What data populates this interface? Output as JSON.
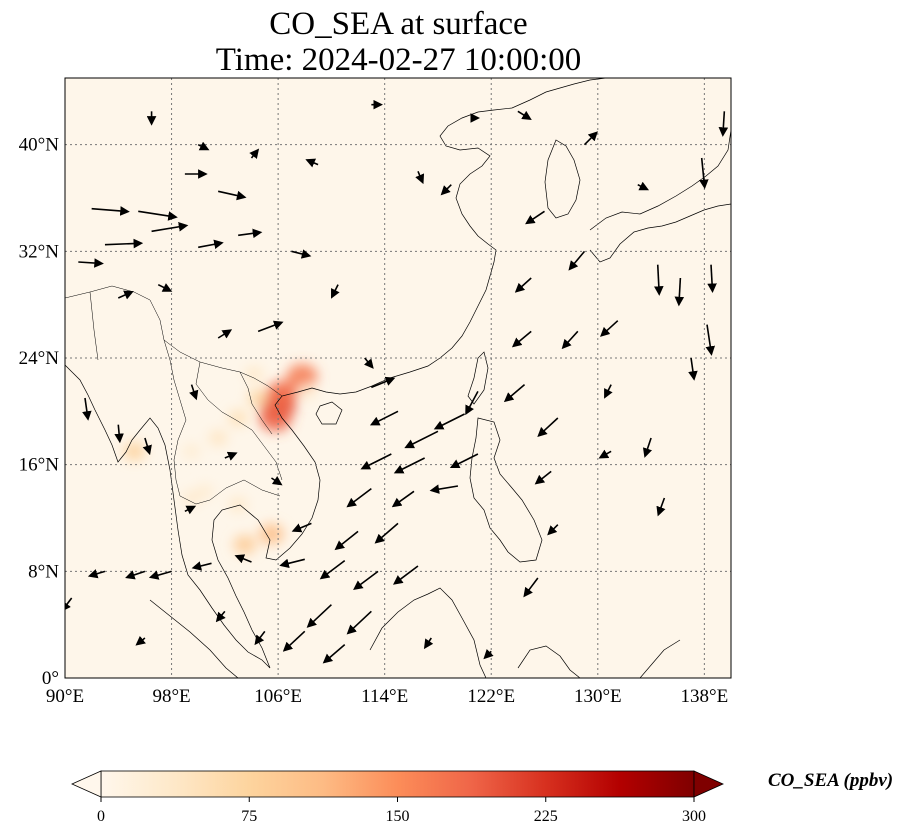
{
  "title": {
    "line1": "CO_SEA at surface",
    "line2": "Time: 2024-02-27 10:00:00"
  },
  "map": {
    "type": "map",
    "lon_range": [
      90,
      140
    ],
    "lat_range": [
      0,
      45
    ],
    "lat_ticks": [
      {
        "value": 40,
        "label": "40°N"
      },
      {
        "value": 32,
        "label": "32°N"
      },
      {
        "value": 24,
        "label": "24°N"
      },
      {
        "value": 16,
        "label": "16°N"
      },
      {
        "value": 8,
        "label": "8°N"
      },
      {
        "value": 0,
        "label": "0°"
      }
    ],
    "lon_ticks": [
      {
        "value": 90,
        "label": "90°E"
      },
      {
        "value": 98,
        "label": "98°E"
      },
      {
        "value": 106,
        "label": "106°E"
      },
      {
        "value": 114,
        "label": "114°E"
      },
      {
        "value": 122,
        "label": "122°E"
      },
      {
        "value": 130,
        "label": "130°E"
      },
      {
        "value": 138,
        "label": "138°E"
      }
    ],
    "gridlines": true,
    "colormap": "OrRd",
    "background_color": "#fef6ea",
    "line_color": "#000000",
    "plumes": [
      {
        "lon": 106.0,
        "lat": 20.5,
        "value": 220
      },
      {
        "lon": 105.8,
        "lat": 19.5,
        "value": 190
      },
      {
        "lon": 106.3,
        "lat": 21.3,
        "value": 180
      },
      {
        "lon": 107.8,
        "lat": 22.6,
        "value": 170
      },
      {
        "lon": 104.5,
        "lat": 21.0,
        "value": 70
      },
      {
        "lon": 103.0,
        "lat": 19.5,
        "value": 55
      },
      {
        "lon": 101.5,
        "lat": 18.0,
        "value": 45
      },
      {
        "lon": 99.5,
        "lat": 17.0,
        "value": 30
      },
      {
        "lon": 95.2,
        "lat": 17.0,
        "value": 80
      },
      {
        "lon": 104.2,
        "lat": 22.8,
        "value": 40
      },
      {
        "lon": 108.2,
        "lat": 21.5,
        "value": 35
      },
      {
        "lon": 103.0,
        "lat": 13.0,
        "value": 40
      },
      {
        "lon": 103.5,
        "lat": 10.0,
        "value": 90
      },
      {
        "lon": 105.5,
        "lat": 10.8,
        "value": 110
      },
      {
        "lon": 100.5,
        "lat": 14.0,
        "value": 30
      },
      {
        "lon": 99.5,
        "lat": 13.5,
        "value": 35
      }
    ],
    "wind_vectors": [
      {
        "lon": 92,
        "lat": 35.2,
        "u": 2.5,
        "v": -0.2
      },
      {
        "lon": 95.5,
        "lat": 35,
        "u": 2.6,
        "v": -0.4
      },
      {
        "lon": 93,
        "lat": 32.5,
        "u": 2.5,
        "v": 0.1
      },
      {
        "lon": 96.5,
        "lat": 33.5,
        "u": 2.4,
        "v": 0.4
      },
      {
        "lon": 91,
        "lat": 31.2,
        "u": 1.6,
        "v": -0.1
      },
      {
        "lon": 99,
        "lat": 37.8,
        "u": 1.4,
        "v": 0
      },
      {
        "lon": 101.5,
        "lat": 36.5,
        "u": 1.8,
        "v": -0.4
      },
      {
        "lon": 100,
        "lat": 32.3,
        "u": 1.6,
        "v": 0.3
      },
      {
        "lon": 103,
        "lat": 33.2,
        "u": 1.5,
        "v": 0.2
      },
      {
        "lon": 104.5,
        "lat": 26,
        "u": 1.6,
        "v": 0.6
      },
      {
        "lon": 107,
        "lat": 32,
        "u": 1.2,
        "v": -0.3
      },
      {
        "lon": 113,
        "lat": 21.8,
        "u": 1.5,
        "v": 0.6
      },
      {
        "lon": 115,
        "lat": 20,
        "u": -1.8,
        "v": -0.9
      },
      {
        "lon": 118,
        "lat": 18.5,
        "u": -2.2,
        "v": -1.1
      },
      {
        "lon": 120,
        "lat": 19.8,
        "u": -2.0,
        "v": -1.0
      },
      {
        "lon": 114.5,
        "lat": 16.8,
        "u": -2.0,
        "v": -1.0
      },
      {
        "lon": 117,
        "lat": 16.5,
        "u": -2.0,
        "v": -1.0
      },
      {
        "lon": 121,
        "lat": 16.8,
        "u": -1.8,
        "v": -0.9
      },
      {
        "lon": 113,
        "lat": 14.2,
        "u": -1.6,
        "v": -1.2
      },
      {
        "lon": 116.2,
        "lat": 14,
        "u": -1.4,
        "v": -1.0
      },
      {
        "lon": 119.5,
        "lat": 14.4,
        "u": -1.8,
        "v": -0.3
      },
      {
        "lon": 112,
        "lat": 11,
        "u": -1.5,
        "v": -1.2
      },
      {
        "lon": 115,
        "lat": 11.6,
        "u": -1.5,
        "v": -1.3
      },
      {
        "lon": 111,
        "lat": 8.8,
        "u": -1.6,
        "v": -1.2
      },
      {
        "lon": 113.5,
        "lat": 8,
        "u": -1.6,
        "v": -1.2
      },
      {
        "lon": 116.5,
        "lat": 8.4,
        "u": -1.6,
        "v": -1.2
      },
      {
        "lon": 110,
        "lat": 5.5,
        "u": -1.6,
        "v": -1.5
      },
      {
        "lon": 113,
        "lat": 5,
        "u": -1.6,
        "v": -1.5
      },
      {
        "lon": 108,
        "lat": 3.5,
        "u": -1.4,
        "v": -1.3
      },
      {
        "lon": 111,
        "lat": 2.5,
        "u": -1.4,
        "v": -1.2
      },
      {
        "lon": 108.5,
        "lat": 11.6,
        "u": -1.2,
        "v": -0.5
      },
      {
        "lon": 108,
        "lat": 8.9,
        "u": -1.6,
        "v": -0.4
      },
      {
        "lon": 104,
        "lat": 8.7,
        "u": -1.0,
        "v": 0.4
      },
      {
        "lon": 101,
        "lat": 8.6,
        "u": -1.2,
        "v": -0.3
      },
      {
        "lon": 98,
        "lat": 8,
        "u": -1.4,
        "v": -0.4
      },
      {
        "lon": 96,
        "lat": 8,
        "u": -1.2,
        "v": -0.4
      },
      {
        "lon": 93,
        "lat": 8,
        "u": -1.0,
        "v": -0.3
      },
      {
        "lon": 90.5,
        "lat": 6,
        "u": -0.6,
        "v": -0.8
      },
      {
        "lon": 124.5,
        "lat": 22,
        "u": -1.3,
        "v": -1.1
      },
      {
        "lon": 127,
        "lat": 19.5,
        "u": -1.3,
        "v": -1.2
      },
      {
        "lon": 125,
        "lat": 26,
        "u": -1.2,
        "v": -1.0
      },
      {
        "lon": 128.5,
        "lat": 26,
        "u": -1.0,
        "v": -1.1
      },
      {
        "lon": 131.5,
        "lat": 26.8,
        "u": -1.1,
        "v": -1.0
      },
      {
        "lon": 125,
        "lat": 30,
        "u": -1.0,
        "v": -0.9
      },
      {
        "lon": 129,
        "lat": 32,
        "u": -1.0,
        "v": -1.2
      },
      {
        "lon": 126,
        "lat": 35,
        "u": -1.2,
        "v": -0.8
      },
      {
        "lon": 134.5,
        "lat": 31,
        "u": 0.1,
        "v": -2.0
      },
      {
        "lon": 136.2,
        "lat": 30,
        "u": -0.1,
        "v": -1.8
      },
      {
        "lon": 138.5,
        "lat": 31,
        "u": 0.1,
        "v": -1.8
      },
      {
        "lon": 138.2,
        "lat": 26.5,
        "u": 0.3,
        "v": -2.0
      },
      {
        "lon": 137.8,
        "lat": 39,
        "u": 0.2,
        "v": -2.0
      },
      {
        "lon": 139.5,
        "lat": 42.5,
        "u": -0.1,
        "v": -1.6
      },
      {
        "lon": 137,
        "lat": 24,
        "u": 0.2,
        "v": -1.4
      },
      {
        "lon": 134,
        "lat": 18,
        "u": -0.4,
        "v": -1.2
      },
      {
        "lon": 135,
        "lat": 13.5,
        "u": -0.4,
        "v": -1.1
      },
      {
        "lon": 121,
        "lat": 21.5,
        "u": -0.8,
        "v": -1.5
      },
      {
        "lon": 126.5,
        "lat": 15.5,
        "u": -1.0,
        "v": -0.8
      },
      {
        "lon": 125.5,
        "lat": 7.5,
        "u": -0.9,
        "v": -1.2
      },
      {
        "lon": 96,
        "lat": 18,
        "u": 0.3,
        "v": -1.0
      },
      {
        "lon": 94,
        "lat": 19,
        "u": 0.1,
        "v": -1.1
      },
      {
        "lon": 91.5,
        "lat": 21,
        "u": 0.2,
        "v": -1.4
      },
      {
        "lon": 99.5,
        "lat": 22,
        "u": 0.3,
        "v": -0.9
      },
      {
        "lon": 101.5,
        "lat": 25.5,
        "u": 0.8,
        "v": 0.5
      },
      {
        "lon": 94,
        "lat": 28.5,
        "u": 0.9,
        "v": 0.4
      },
      {
        "lon": 97,
        "lat": 29.5,
        "u": 0.8,
        "v": -0.4
      },
      {
        "lon": 110.5,
        "lat": 29.5,
        "u": -0.4,
        "v": -0.8
      },
      {
        "lon": 112.5,
        "lat": 24,
        "u": 0.5,
        "v": -0.6
      },
      {
        "lon": 116.5,
        "lat": 38,
        "u": 0.3,
        "v": -0.7
      },
      {
        "lon": 119,
        "lat": 37,
        "u": -0.6,
        "v": -0.6
      },
      {
        "lon": 109,
        "lat": 38.5,
        "u": -0.7,
        "v": 0.3
      },
      {
        "lon": 104,
        "lat": 39,
        "u": 0.4,
        "v": 0.5
      },
      {
        "lon": 96.5,
        "lat": 42.5,
        "u": 0.0,
        "v": -0.8
      },
      {
        "lon": 100,
        "lat": 40,
        "u": 0.6,
        "v": -0.3
      },
      {
        "lon": 113,
        "lat": 43,
        "u": 0.6,
        "v": 0.0
      },
      {
        "lon": 120.5,
        "lat": 42,
        "u": 0.4,
        "v": 0.0
      },
      {
        "lon": 124,
        "lat": 42.5,
        "u": 0.8,
        "v": -0.5
      },
      {
        "lon": 129,
        "lat": 40,
        "u": 0.8,
        "v": 0.8
      },
      {
        "lon": 133,
        "lat": 37,
        "u": 0.6,
        "v": -0.3
      },
      {
        "lon": 131,
        "lat": 22,
        "u": -0.4,
        "v": -0.8
      },
      {
        "lon": 131,
        "lat": 17,
        "u": -0.7,
        "v": -0.4
      },
      {
        "lon": 127,
        "lat": 11.5,
        "u": -0.6,
        "v": -0.6
      },
      {
        "lon": 102,
        "lat": 16.5,
        "u": 0.7,
        "v": 0.3
      },
      {
        "lon": 105.5,
        "lat": 15,
        "u": 0.6,
        "v": -0.4
      },
      {
        "lon": 99,
        "lat": 12.5,
        "u": 0.6,
        "v": 0.3
      },
      {
        "lon": 102,
        "lat": 5,
        "u": -0.5,
        "v": -0.6
      },
      {
        "lon": 105,
        "lat": 3.5,
        "u": -0.6,
        "v": -0.8
      },
      {
        "lon": 96,
        "lat": 3,
        "u": -0.5,
        "v": -0.4
      },
      {
        "lon": 117.5,
        "lat": 3,
        "u": -0.4,
        "v": -0.6
      },
      {
        "lon": 122,
        "lat": 2,
        "u": -0.4,
        "v": -0.4
      }
    ]
  },
  "colorbar": {
    "label": "CO_SEA (ppbv)",
    "vmin": 0,
    "vmax": 300,
    "extend": "both",
    "stops": [
      "#fff7ec",
      "#fee8c8",
      "#fdd49e",
      "#fdbb84",
      "#fc8d59",
      "#ef6548",
      "#d7301f",
      "#b30000",
      "#7f0000"
    ],
    "ticks": [
      {
        "value": 0,
        "label": "0"
      },
      {
        "value": 75,
        "label": "75"
      },
      {
        "value": 150,
        "label": "150"
      },
      {
        "value": 225,
        "label": "225"
      },
      {
        "value": 300,
        "label": "300"
      }
    ]
  }
}
